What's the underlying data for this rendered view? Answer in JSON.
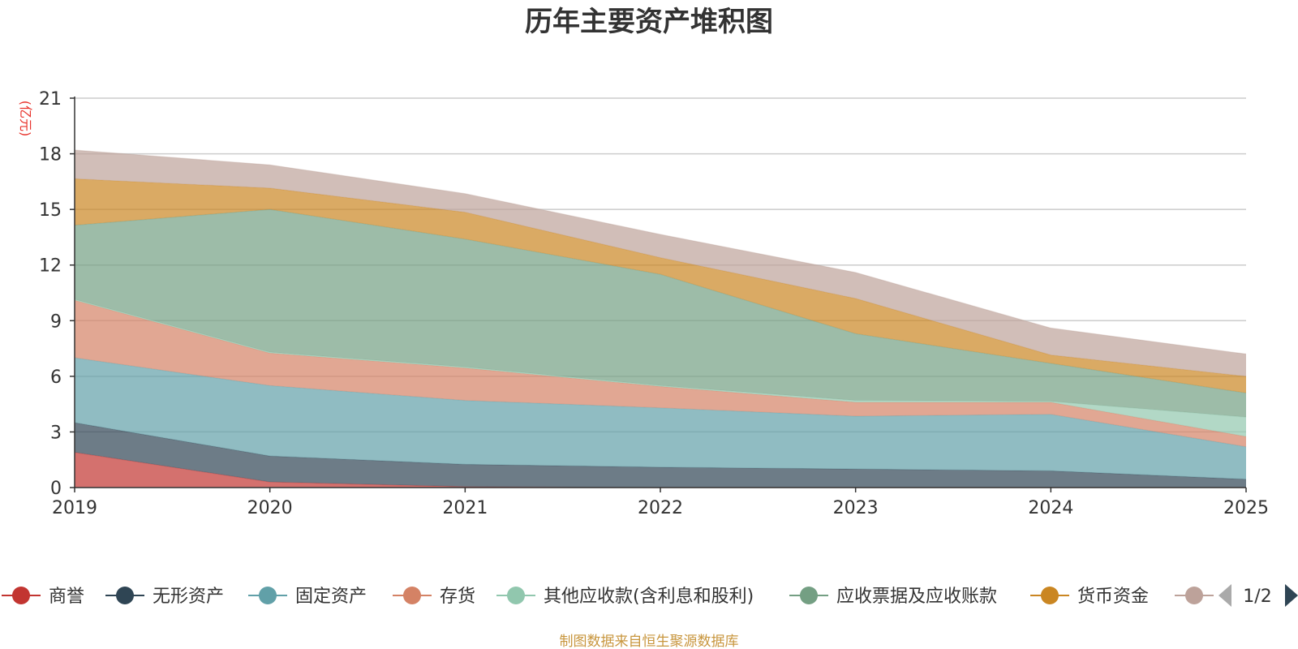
{
  "chart_data": {
    "type": "area",
    "stacked": true,
    "title": "历年主要资产堆积图",
    "ylabel": "(亿元)",
    "xlabel": "",
    "categories": [
      "2019",
      "2020",
      "2021",
      "2022",
      "2023",
      "2024",
      "2025"
    ],
    "ylim": [
      0,
      21
    ],
    "yticks": [
      0,
      3,
      6,
      9,
      12,
      15,
      18,
      21
    ],
    "grid": true,
    "series": [
      {
        "name": "商誉",
        "color": "#c23531",
        "values": [
          1.9,
          0.3,
          0.05,
          0.0,
          0.0,
          0.0,
          0.0
        ]
      },
      {
        "name": "无形资产",
        "color": "#2f4554",
        "values": [
          1.6,
          1.4,
          1.2,
          1.1,
          1.0,
          0.9,
          0.45
        ]
      },
      {
        "name": "固定资产",
        "color": "#61a0a8",
        "values": [
          3.5,
          3.8,
          3.45,
          3.2,
          2.85,
          3.05,
          1.75
        ]
      },
      {
        "name": "存货",
        "color": "#d48265",
        "values": [
          3.1,
          1.75,
          1.75,
          1.15,
          0.75,
          0.65,
          0.55
        ]
      },
      {
        "name": "其他应收款(含利息和股利)",
        "color": "#91c7ae",
        "values": [
          0.05,
          0.05,
          0.05,
          0.05,
          0.1,
          0.05,
          1.05
        ]
      },
      {
        "name": "应收票据及应收账款",
        "color": "#749f83",
        "values": [
          4.0,
          7.7,
          6.9,
          6.0,
          3.6,
          2.05,
          1.3
        ]
      },
      {
        "name": "货币资金",
        "color": "#ca8622",
        "values": [
          2.5,
          1.15,
          1.45,
          0.9,
          1.9,
          0.45,
          0.9
        ]
      },
      {
        "name": "",
        "color": "#bda29a",
        "values": [
          1.55,
          1.25,
          1.0,
          1.25,
          1.4,
          1.45,
          1.2
        ]
      }
    ],
    "legend_position": "bottom",
    "legend_page": "1/2"
  },
  "source_text": "制图数据来自恒生聚源数据库",
  "colors": {
    "source": "#c8963e",
    "unit": "#e8312a",
    "grid": "#cccccc",
    "axis": "#333333"
  }
}
